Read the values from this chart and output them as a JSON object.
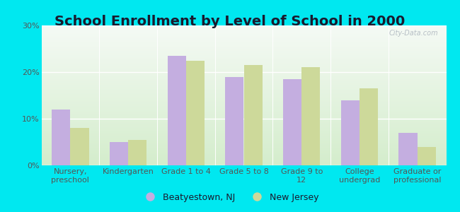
{
  "title": "School Enrollment by Level of School in 2000",
  "categories": [
    "Nursery,\npreschool",
    "Kindergarten",
    "Grade 1 to 4",
    "Grade 5 to 8",
    "Grade 9 to\n12",
    "College\nundergrad",
    "Graduate or\nprofessional"
  ],
  "beatyestown": [
    12.0,
    5.0,
    23.5,
    19.0,
    18.5,
    14.0,
    7.0
  ],
  "new_jersey": [
    8.0,
    5.5,
    22.5,
    21.5,
    21.0,
    16.5,
    4.0
  ],
  "bar_color_beat": "#c4aee0",
  "bar_color_nj": "#cdd99a",
  "background_outer": "#00e8f0",
  "background_inner_bottom": "#d4edcc",
  "background_inner_top": "#f5faf5",
  "ylim": [
    0,
    30
  ],
  "yticks": [
    0,
    10,
    20,
    30
  ],
  "ytick_labels": [
    "0%",
    "10%",
    "20%",
    "30%"
  ],
  "legend_label_beat": "Beatyestown, NJ",
  "legend_label_nj": "New Jersey",
  "title_fontsize": 14,
  "tick_fontsize": 8,
  "legend_fontsize": 9,
  "title_color": "#1a1a2e",
  "tick_color": "#555555"
}
